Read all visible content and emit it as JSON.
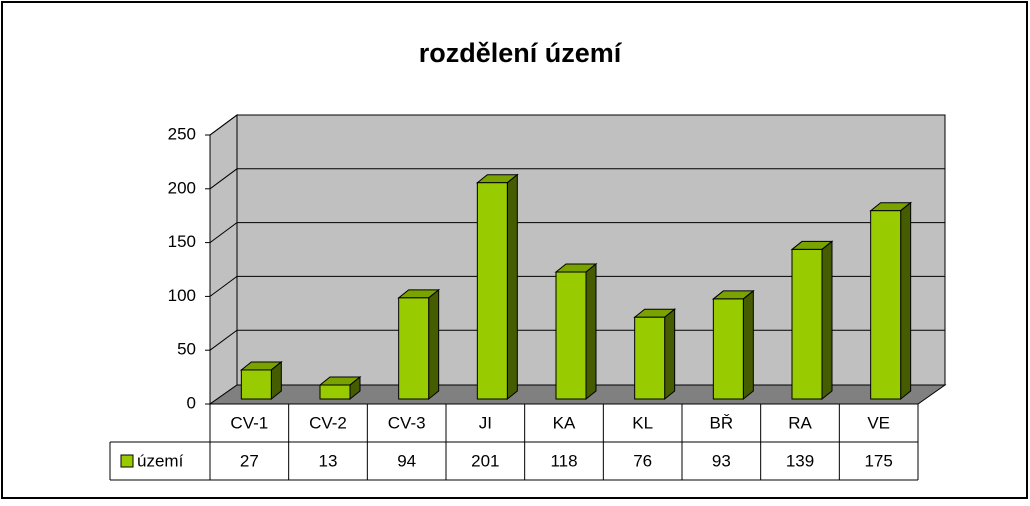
{
  "chart_data": {
    "type": "bar",
    "title": "rozdělení území",
    "categories": [
      "CV-1",
      "CV-2",
      "CV-3",
      "JI",
      "KA",
      "KL",
      "BŘ",
      "RA",
      "VE"
    ],
    "series": [
      {
        "name": "území",
        "color": "#99cc00",
        "values": [
          27,
          13,
          94,
          201,
          118,
          76,
          93,
          139,
          175
        ]
      }
    ],
    "ylim": [
      0,
      250
    ],
    "yticks": [
      0,
      50,
      100,
      150,
      200,
      250
    ],
    "grid": true,
    "data_table": true
  }
}
